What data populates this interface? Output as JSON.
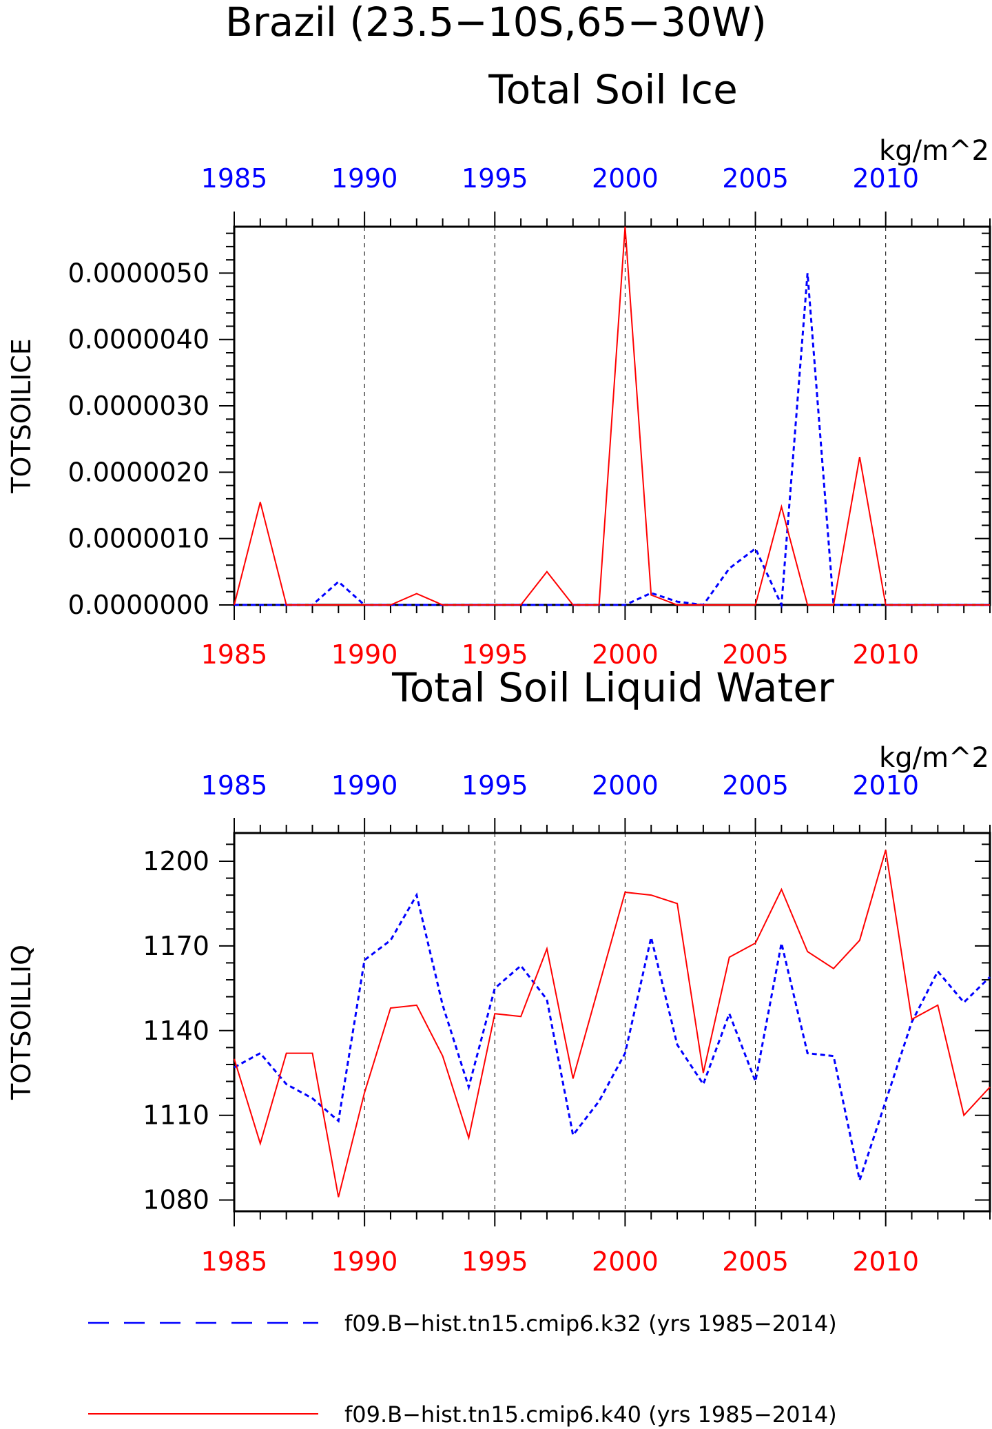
{
  "page": {
    "title": "Brazil (23.5−10S,65−30W)"
  },
  "legend": {
    "position": "bottom",
    "items": [
      {
        "label": "f09.B−hist.tn15.cmip6.k32 (yrs 1985−2014)",
        "color": "#0000ff",
        "dash": "dashed"
      },
      {
        "label": "f09.B−hist.tn15.cmip6.k40 (yrs 1985−2014)",
        "color": "#ff0000",
        "dash": "solid"
      }
    ]
  },
  "chart_data": [
    {
      "type": "line",
      "title": "Total Soil Ice",
      "units": "kg/m^2",
      "ylabel": "TOTSOILICE",
      "xlim": [
        1985,
        2014
      ],
      "ylim": [
        0,
        5.7e-06
      ],
      "yticks": [
        "0.0000000",
        "0.0000010",
        "0.0000020",
        "0.0000030",
        "0.0000040",
        "0.0000050"
      ],
      "ytick_values": [
        0,
        1e-06,
        2e-06,
        3e-06,
        4e-06,
        5e-06
      ],
      "xticks": [
        1985,
        1990,
        1995,
        2000,
        2005,
        2010
      ],
      "xtick_labels": [
        "1985",
        "1990",
        "1995",
        "2000",
        "2005",
        "2010"
      ],
      "grid": "vertical dashed at labeled years",
      "x": [
        1985,
        1986,
        1987,
        1988,
        1989,
        1990,
        1991,
        1992,
        1993,
        1994,
        1995,
        1996,
        1997,
        1998,
        1999,
        2000,
        2001,
        2002,
        2003,
        2004,
        2005,
        2006,
        2007,
        2008,
        2009,
        2010,
        2011,
        2012,
        2013,
        2014
      ],
      "series": [
        {
          "color": "#0000ff",
          "dash": "dashed",
          "values": [
            0,
            0,
            0,
            0,
            3.5e-07,
            0,
            0,
            0,
            0,
            0,
            0,
            0,
            0,
            0,
            0,
            0,
            1.8e-07,
            5e-08,
            0,
            5.5e-07,
            8.5e-07,
            0,
            5e-06,
            0,
            0,
            0,
            0,
            0,
            0,
            0
          ]
        },
        {
          "color": "#ff0000",
          "dash": "solid",
          "values": [
            0,
            1.55e-06,
            0,
            0,
            0,
            0,
            0,
            1.7e-07,
            0,
            0,
            0,
            0,
            5e-07,
            0,
            0,
            5.7e-06,
            1.5e-07,
            0,
            0,
            0,
            0,
            1.48e-06,
            0,
            0,
            2.23e-06,
            0,
            0,
            0,
            0,
            0
          ]
        }
      ]
    },
    {
      "type": "line",
      "title": "Total Soil Liquid Water",
      "units": "kg/m^2",
      "ylabel": "TOTSOILLIQ",
      "xlim": [
        1985,
        2014
      ],
      "ylim": [
        1076,
        1210
      ],
      "yticks": [
        "1080",
        "1110",
        "1140",
        "1170",
        "1200"
      ],
      "ytick_values": [
        1080,
        1110,
        1140,
        1170,
        1200
      ],
      "xticks": [
        1985,
        1990,
        1995,
        2000,
        2005,
        2010
      ],
      "xtick_labels": [
        "1985",
        "1990",
        "1995",
        "2000",
        "2005",
        "2010"
      ],
      "grid": "vertical dashed at labeled years",
      "x": [
        1985,
        1986,
        1987,
        1988,
        1989,
        1990,
        1991,
        1992,
        1993,
        1994,
        1995,
        1996,
        1997,
        1998,
        1999,
        2000,
        2001,
        2002,
        2003,
        2004,
        2005,
        2006,
        2007,
        2008,
        2009,
        2010,
        2011,
        2012,
        2013,
        2014
      ],
      "series": [
        {
          "color": "#0000ff",
          "dash": "dashed",
          "values": [
            1127,
            1132,
            1121,
            1116,
            1108,
            1165,
            1172,
            1188,
            1149,
            1120,
            1155,
            1163,
            1151,
            1103,
            1115,
            1132,
            1173,
            1135,
            1121,
            1146,
            1122,
            1171,
            1132,
            1131,
            1087,
            1115,
            1143,
            1161,
            1150,
            1159
          ]
        },
        {
          "color": "#ff0000",
          "dash": "solid",
          "values": [
            1130,
            1100,
            1132,
            1132,
            1081,
            1118,
            1148,
            1149,
            1131,
            1102,
            1146,
            1145,
            1169,
            1123,
            1156,
            1189,
            1188,
            1185,
            1125,
            1166,
            1171,
            1190,
            1168,
            1162,
            1172,
            1204,
            1144,
            1149,
            1110,
            1120
          ]
        }
      ]
    }
  ]
}
